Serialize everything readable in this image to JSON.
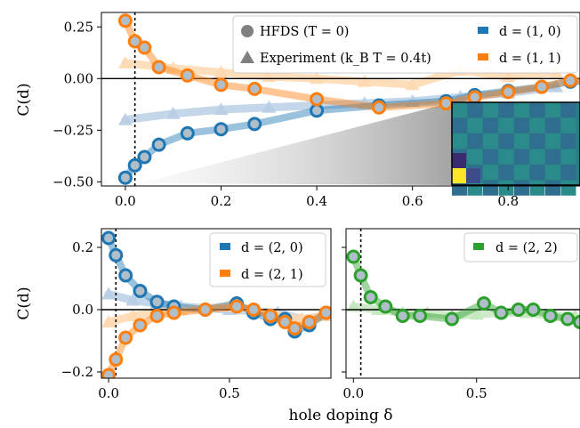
{
  "colors": {
    "blue": "#1f77b4",
    "orange": "#ff7f0e",
    "green": "#2ca02c",
    "exp_blue": "#b9cfe6",
    "exp_orange": "#ffd8b0",
    "exp_green": "#c4e8bf",
    "marker_fill": "#b0bec9",
    "legend_gray": "#808080"
  },
  "xlabel": "hole doping δ",
  "ylabel": "C(d)",
  "chart_data": [
    {
      "type": "line",
      "panel": "top",
      "xlim": [
        -0.05,
        0.95
      ],
      "ylim": [
        -0.52,
        0.32
      ],
      "xticks": [
        "0.0",
        "0.2",
        "0.4",
        "0.6",
        "0.8"
      ],
      "xtick_values": [
        0.0,
        0.2,
        0.4,
        0.6,
        0.8
      ],
      "yticks": [
        "0.25",
        "0.00",
        "−0.25",
        "−0.50"
      ],
      "ytick_values": [
        0.25,
        0.0,
        -0.25,
        -0.5
      ],
      "ylabel": "C(d)",
      "hline": 0,
      "vline": 0.02,
      "legend": {
        "marker_hfds": "HFDS (T = 0)",
        "marker_exp": "Experiment (k_B T = 0.4t)",
        "series_1": "d = (1, 0)",
        "series_2": "d = (1, 1)"
      },
      "inset": "heatmap",
      "series": [
        {
          "name": "d = (1, 0)",
          "color": "blue",
          "hfds_x": [
            0.0,
            0.02,
            0.04,
            0.07,
            0.13,
            0.2,
            0.27,
            0.4,
            0.53,
            0.67,
            0.73,
            0.8,
            0.87,
            0.93,
            1.0
          ],
          "hfds_y": [
            -0.48,
            -0.42,
            -0.38,
            -0.32,
            -0.265,
            -0.245,
            -0.22,
            -0.155,
            -0.13,
            -0.11,
            -0.08,
            -0.06,
            -0.04,
            -0.015,
            -0.01
          ],
          "exp_x": [
            0.0,
            0.1,
            0.2,
            0.3,
            0.4,
            0.5,
            0.6,
            0.7,
            0.8,
            0.9
          ],
          "exp_y": [
            -0.2,
            -0.17,
            -0.15,
            -0.14,
            -0.13,
            -0.12,
            -0.11,
            -0.09,
            -0.07,
            -0.04
          ]
        },
        {
          "name": "d = (1, 1)",
          "color": "orange",
          "hfds_x": [
            0.0,
            0.02,
            0.04,
            0.07,
            0.13,
            0.2,
            0.27,
            0.4,
            0.53,
            0.67,
            0.73,
            0.8,
            0.87,
            0.93,
            1.0
          ],
          "hfds_y": [
            0.28,
            0.18,
            0.15,
            0.055,
            0.015,
            -0.03,
            -0.05,
            -0.1,
            -0.14,
            -0.12,
            -0.09,
            -0.065,
            -0.04,
            -0.01,
            -0.01
          ],
          "exp_x": [
            0.0,
            0.1,
            0.2,
            0.3,
            0.4,
            0.5,
            0.6,
            0.7,
            0.8,
            0.9
          ],
          "exp_y": [
            0.075,
            0.05,
            0.03,
            0.01,
            0.0,
            -0.015,
            -0.03,
            0.04,
            0.01,
            0.03
          ]
        }
      ]
    },
    {
      "type": "line",
      "panel": "bottom-left",
      "xlim": [
        -0.03,
        0.92
      ],
      "ylim": [
        -0.22,
        0.26
      ],
      "xticks": [
        "0.0",
        "0.5"
      ],
      "xtick_values": [
        0.0,
        0.5
      ],
      "yticks": [
        "0.2",
        "0.0",
        "−0.2"
      ],
      "ytick_values": [
        0.2,
        0.0,
        -0.2
      ],
      "ylabel": "C(d)",
      "hline": 0,
      "vline": 0.03,
      "series": [
        {
          "name": "d = (2, 0)",
          "color": "blue",
          "hfds_x": [
            0.0,
            0.03,
            0.07,
            0.13,
            0.2,
            0.27,
            0.4,
            0.53,
            0.6,
            0.67,
            0.73,
            0.77,
            0.83,
            0.9
          ],
          "hfds_y": [
            0.23,
            0.175,
            0.11,
            0.06,
            0.025,
            0.01,
            0.0,
            0.02,
            -0.01,
            -0.03,
            -0.03,
            -0.07,
            -0.05,
            -0.01
          ],
          "exp_x": [
            0.0,
            0.1,
            0.2,
            0.3,
            0.4,
            0.5,
            0.6,
            0.7,
            0.8,
            0.9
          ],
          "exp_y": [
            0.05,
            0.03,
            0.02,
            0.01,
            0.005,
            0.0,
            -0.005,
            -0.01,
            -0.03,
            -0.02
          ]
        },
        {
          "name": "d = (2, 1)",
          "color": "orange",
          "hfds_x": [
            0.0,
            0.03,
            0.07,
            0.13,
            0.2,
            0.27,
            0.4,
            0.53,
            0.6,
            0.67,
            0.73,
            0.77,
            0.83,
            0.9
          ],
          "hfds_y": [
            -0.21,
            -0.16,
            -0.09,
            -0.05,
            -0.02,
            -0.01,
            0.0,
            0.01,
            0.0,
            -0.02,
            -0.04,
            -0.06,
            -0.04,
            -0.01
          ],
          "exp_x": [
            0.0,
            0.1,
            0.2,
            0.3,
            0.4,
            0.5,
            0.6,
            0.7,
            0.8,
            0.9
          ],
          "exp_y": [
            -0.04,
            -0.02,
            -0.01,
            0.0,
            0.005,
            0.01,
            0.0,
            -0.02,
            -0.03,
            -0.02
          ]
        }
      ]
    },
    {
      "type": "line",
      "panel": "bottom-right",
      "xlim": [
        -0.03,
        0.92
      ],
      "ylim": [
        -0.22,
        0.26
      ],
      "xticks": [
        "0.0",
        "0.5"
      ],
      "xtick_values": [
        0.0,
        0.5
      ],
      "hline": 0,
      "vline": 0.03,
      "series": [
        {
          "name": "d = (2, 2)",
          "color": "green",
          "hfds_x": [
            0.0,
            0.03,
            0.07,
            0.13,
            0.2,
            0.27,
            0.4,
            0.53,
            0.6,
            0.67,
            0.73,
            0.8,
            0.87,
            0.92
          ],
          "hfds_y": [
            0.17,
            0.11,
            0.04,
            0.01,
            -0.02,
            -0.02,
            -0.03,
            0.02,
            -0.01,
            0.0,
            0.0,
            -0.02,
            -0.03,
            -0.04
          ],
          "exp_x": [
            0.0,
            0.1,
            0.2,
            0.3,
            0.4,
            0.5,
            0.6,
            0.7,
            0.8,
            0.9
          ],
          "exp_y": [
            0.01,
            0.0,
            -0.01,
            -0.01,
            -0.02,
            -0.015,
            -0.01,
            -0.01,
            -0.02,
            -0.02
          ]
        }
      ]
    }
  ]
}
